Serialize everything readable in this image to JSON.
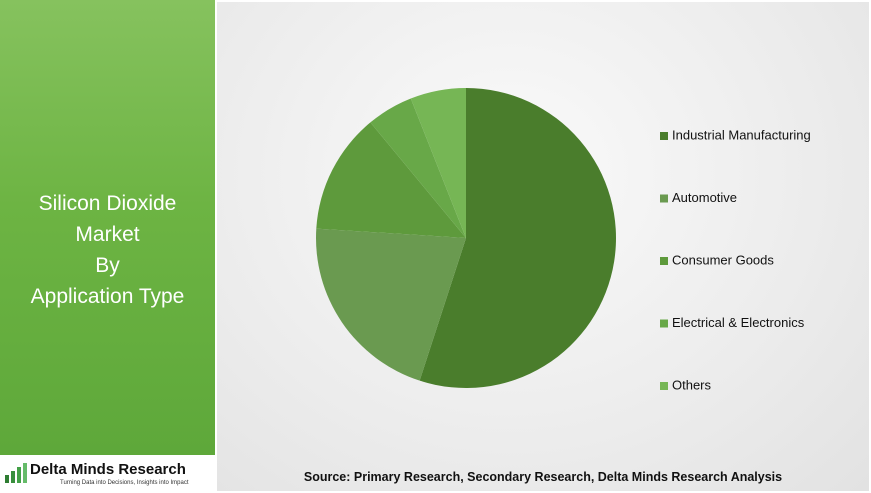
{
  "brand": {
    "name": "Delta Minds Research",
    "tagline": "Turning Data into Decisions, Insights into Impact"
  },
  "chart_data": {
    "type": "pie",
    "title": [
      "Silicon Dioxide",
      "Market",
      "By",
      "Application Type"
    ],
    "categories": [
      "Industrial Manufacturing",
      "Automotive",
      "Consumer Goods",
      "Electrical & Electronics",
      "Others"
    ],
    "values": [
      55,
      21,
      13,
      5,
      6
    ],
    "colors": [
      "#4a7d2c",
      "#6a9a50",
      "#5e9a3c",
      "#68a848",
      "#76b655"
    ],
    "source": "Source: Primary Research, Secondary Research, Delta Minds Research Analysis"
  }
}
